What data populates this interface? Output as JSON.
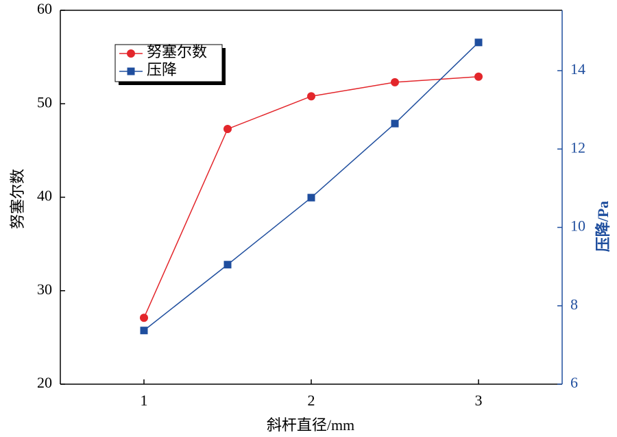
{
  "chart_data": {
    "type": "line",
    "x_label": "斜杆直径/mm",
    "y_label": "努塞尔数",
    "y2_label": "压降/Pa",
    "x": [
      1,
      1.5,
      2,
      2.5,
      3
    ],
    "series": [
      {
        "name": "努塞尔数",
        "color": "#e3262b",
        "marker": "circle",
        "values": [
          27.1,
          47.3,
          50.8,
          52.3,
          52.9
        ]
      },
      {
        "name": "压降",
        "color": "#1f4e9e",
        "marker": "square",
        "axis": "y2",
        "values": [
          7.37,
          9.05,
          10.76,
          12.65,
          14.72
        ]
      }
    ],
    "xlim": [
      0.5,
      3.5
    ],
    "xticks": [
      1,
      2,
      3
    ],
    "ylim": [
      20,
      60
    ],
    "yticks": [
      20,
      30,
      40,
      50,
      60
    ],
    "y2lim": [
      6,
      15.54
    ],
    "y2ticks": [
      6,
      8,
      10,
      12,
      14
    ],
    "legend": "upper left"
  }
}
